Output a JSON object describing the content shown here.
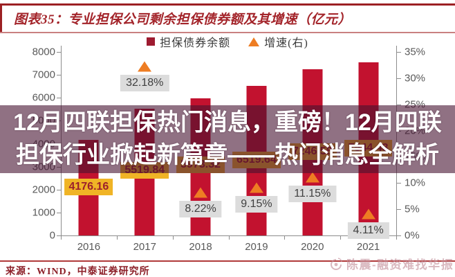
{
  "header": {
    "title": "图表35：专业担保公司剩余担保债券额及其增速（亿元）"
  },
  "overlay": {
    "line1": "12月四联担保热门消息，重磅！12月四联",
    "line2": "担保行业掀起新篇章——热门消息全解析"
  },
  "chart_data": {
    "type": "bar",
    "title": "专业担保公司剩余担保债券额及其增速（亿元）",
    "categories": [
      "2016",
      "2017",
      "2018",
      "2019",
      "2020",
      "2021"
    ],
    "series": [
      {
        "name": "担保债券余额",
        "type": "bar",
        "axis": "left",
        "color": "#c2122f",
        "values": [
          4176.16,
          5519.84,
          5973.32,
          6519.64,
          7246.58,
          7544.43
        ],
        "data_labels": [
          "4176.16",
          "5519.84",
          "5973.32",
          "6519.64",
          "7246.58",
          "7544.43"
        ],
        "label_bg": "#f0b426"
      },
      {
        "name": "增速(右)",
        "type": "scatter",
        "marker": "triangle",
        "axis": "right",
        "color": "#ee7d23",
        "values": [
          null,
          32.18,
          8.22,
          9.15,
          11.15,
          4.11
        ],
        "data_labels": [
          "",
          "32.18%",
          "8.22%",
          "9.15%",
          "11.15%",
          "4.11%"
        ],
        "label_bg": "#dcdcdc"
      }
    ],
    "left_axis": {
      "min": 0,
      "max": 8000,
      "step": 1000
    },
    "right_axis": {
      "min": 0,
      "max": 35,
      "step": 5,
      "suffix": "%"
    },
    "grid": false,
    "legend_position": "top"
  },
  "footer": {
    "source": "来源：WIND，中泰证券研究所",
    "watermark": "陈震-融资难找华振"
  }
}
